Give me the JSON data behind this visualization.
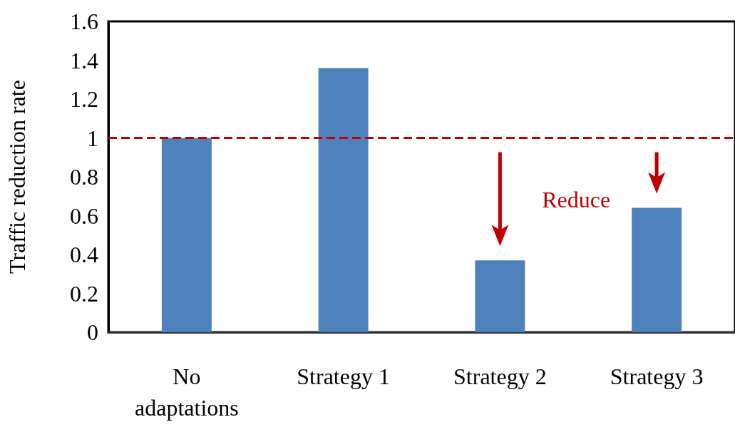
{
  "chart_data": {
    "type": "bar",
    "ylabel": "Traffic reduction rate",
    "categories": [
      "No\nadaptations",
      "Strategy 1",
      "Strategy 2",
      "Strategy 3"
    ],
    "values": [
      1.0,
      1.36,
      0.37,
      0.64
    ],
    "color": "#4f81bd",
    "ylim": [
      0,
      1.6
    ],
    "yticks": [
      0,
      0.2,
      0.4,
      0.6,
      0.8,
      1,
      1.2,
      1.4,
      1.6
    ],
    "grid": false,
    "ref_lines": [
      {
        "axis": "y",
        "value": 1,
        "label": null,
        "color": "#c00000",
        "line_style": "dashed"
      }
    ],
    "annotations": [
      "Reduce"
    ]
  }
}
